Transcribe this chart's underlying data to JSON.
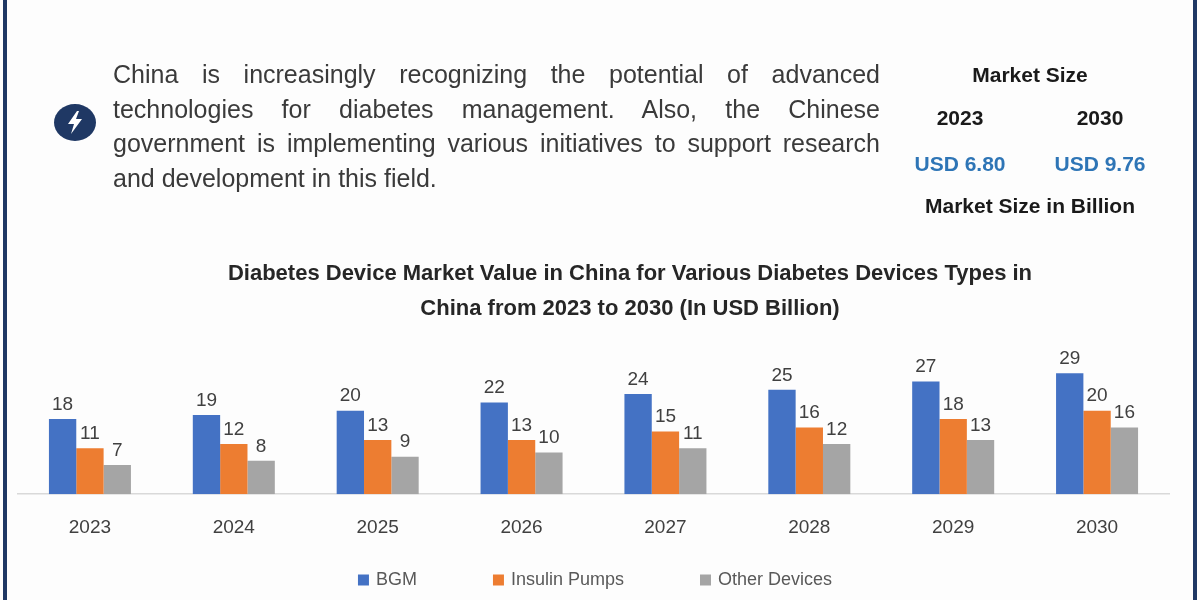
{
  "chart_data": [
    {
      "type": "other",
      "annotations": [
        "China is increasingly recognizing the potential of advanced technologies for diabetes management. Also, the Chinese government is implementing various initiatives to support research and development in this field."
      ]
    },
    {
      "type": "other",
      "title": "Market Size",
      "annotations": [
        "2023",
        "2030",
        "USD 6.80",
        "USD 9.76",
        "Market Size in Billion"
      ]
    },
    {
      "type": "bar",
      "title": "Diabetes Device Market Value in China for Various Diabetes Devices Types in China from 2023 to 2030 (In USD Billion)",
      "categories": [
        "2023",
        "2024",
        "2025",
        "2026",
        "2027",
        "2028",
        "2029",
        "2030"
      ],
      "series": [
        {
          "name": "BGM",
          "color": "#4472c4",
          "values": [
            18,
            19,
            20,
            22,
            24,
            25,
            27,
            29
          ]
        },
        {
          "name": "Insulin Pumps",
          "color": "#ed7d31",
          "values": [
            11,
            12,
            13,
            13,
            15,
            16,
            18,
            20
          ]
        },
        {
          "name": "Other Devices",
          "color": "#a5a5a5",
          "values": [
            7,
            8,
            9,
            10,
            11,
            12,
            13,
            16
          ]
        }
      ],
      "tick_labels": "x",
      "data_labels": true,
      "legend": "bottom"
    }
  ]
}
